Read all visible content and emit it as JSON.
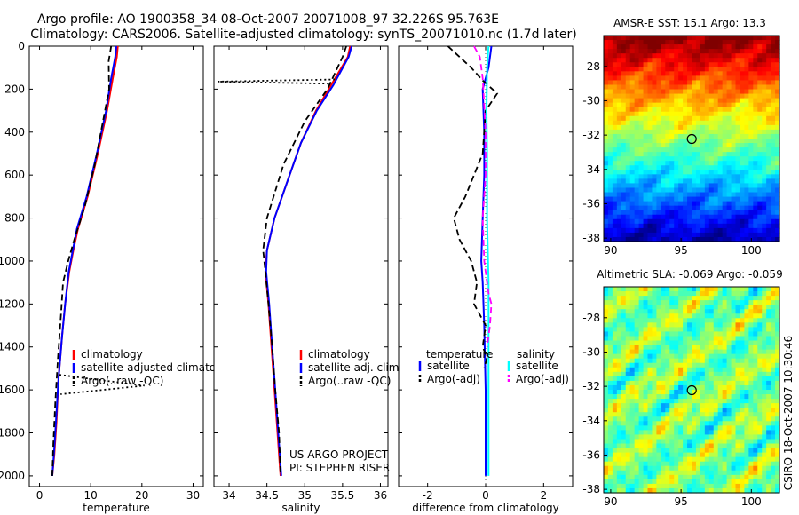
{
  "title": {
    "line1": "Argo profile: AO 1900358_34 08-Oct-2007 20071008_97 32.226S 95.763E",
    "line2": "Climatology: CARS2006. Satellite-adjusted climatology: synTS_20071010.nc (1.7d later)"
  },
  "side_label": "CSIRO 18-Oct-2007 10:30:46",
  "colors": {
    "climatology": "#ff0000",
    "satellite": "#0000ff",
    "argo": "#000000",
    "sal_satellite": "#00ffff",
    "sal_argo": "#ff00ff"
  },
  "chart_data": [
    {
      "type": "line",
      "name": "temperature-profile",
      "xlabel": "temperature",
      "xlim": [
        -2,
        32
      ],
      "ylim": [
        2050,
        0
      ],
      "xticks": [
        0,
        10,
        20,
        30
      ],
      "yticks": [
        0,
        200,
        400,
        600,
        800,
        1000,
        1200,
        1400,
        1600,
        1800,
        2000
      ],
      "legend": [
        "climatology",
        "satellite-adjusted climatology",
        "Argo(..raw -QC)"
      ],
      "series": [
        {
          "name": "climatology",
          "style": "solid",
          "color": "#ff0000",
          "x": [
            15.3,
            15.1,
            14.3,
            13.2,
            11.4,
            9.4,
            7.5,
            6.6,
            5.8,
            5.0,
            4.4,
            3.7,
            3.3,
            2.9,
            2.5
          ],
          "y": [
            0,
            50,
            150,
            300,
            500,
            700,
            850,
            950,
            1050,
            1200,
            1350,
            1550,
            1750,
            1900,
            2000
          ]
        },
        {
          "name": "satellite-adjusted climatology",
          "style": "solid",
          "color": "#0000ff",
          "x": [
            15.0,
            14.8,
            14.0,
            13.0,
            11.2,
            9.2,
            7.3,
            6.5,
            5.7,
            5.0,
            4.4,
            3.7,
            3.2,
            2.8,
            2.5
          ],
          "y": [
            0,
            50,
            150,
            300,
            500,
            700,
            850,
            950,
            1050,
            1200,
            1350,
            1550,
            1750,
            1900,
            2000
          ]
        },
        {
          "name": "Argo(..raw -QC)",
          "style": "dashed",
          "color": "#000000",
          "x": [
            14.0,
            13.5,
            13.6,
            12.4,
            10.8,
            8.8,
            6.8,
            5.6,
            4.6,
            4.2,
            3.6,
            3.1,
            2.7,
            2.5
          ],
          "y": [
            0,
            70,
            200,
            350,
            550,
            750,
            900,
            1000,
            1100,
            1250,
            1450,
            1650,
            1850,
            2000
          ]
        },
        {
          "name": "Argo(..raw -QC) spike",
          "style": "dotted",
          "color": "#000000",
          "x": [
            3.9,
            20.5,
            4.1
          ],
          "y": [
            1530,
            1580,
            1620
          ]
        }
      ]
    },
    {
      "type": "line",
      "name": "salinity-profile",
      "xlabel": "salinity",
      "xlim": [
        33.8,
        36.1
      ],
      "ylim": [
        2050,
        0
      ],
      "xticks": [
        34,
        34.5,
        35,
        35.5,
        36
      ],
      "legend": [
        "climatology",
        "satellite adj. clim.",
        "Argo(..raw -QC)"
      ],
      "annotations": [
        "US ARGO PROJECT",
        "PI: STEPHEN RISER"
      ],
      "series": [
        {
          "name": "climatology",
          "style": "solid",
          "color": "#ff0000",
          "x": [
            35.6,
            35.57,
            35.35,
            35.15,
            34.95,
            34.8,
            34.6,
            34.5,
            34.48,
            34.52,
            34.56,
            34.6,
            34.64,
            34.67,
            34.68
          ],
          "y": [
            0,
            50,
            180,
            300,
            450,
            600,
            800,
            950,
            1050,
            1200,
            1400,
            1600,
            1800,
            1950,
            2000
          ]
        },
        {
          "name": "satellite adj. clim.",
          "style": "solid",
          "color": "#0000ff",
          "x": [
            35.62,
            35.58,
            35.38,
            35.16,
            34.95,
            34.8,
            34.6,
            34.5,
            34.49,
            34.53,
            34.57,
            34.61,
            34.65,
            34.68,
            34.69
          ],
          "y": [
            0,
            50,
            180,
            300,
            450,
            600,
            800,
            950,
            1050,
            1200,
            1400,
            1600,
            1800,
            1950,
            2000
          ]
        },
        {
          "name": "Argo(..raw -QC)",
          "style": "dashed",
          "color": "#000000",
          "x": [
            35.55,
            35.5,
            35.3,
            35.0,
            34.72,
            34.5,
            34.45,
            34.48,
            34.52,
            34.57,
            34.61,
            34.66,
            34.68
          ],
          "y": [
            0,
            50,
            200,
            350,
            550,
            800,
            950,
            1050,
            1200,
            1400,
            1600,
            1800,
            2000
          ]
        },
        {
          "name": "Argo(..raw -QC) spike",
          "style": "dotted",
          "color": "#000000",
          "x": [
            35.4,
            33.85,
            35.35
          ],
          "y": [
            155,
            165,
            175
          ]
        }
      ]
    },
    {
      "type": "line",
      "name": "difference-from-climatology",
      "xlabel": "difference from climatology",
      "xlim": [
        -3,
        3
      ],
      "ylim": [
        2050,
        0
      ],
      "xticks": [
        -2,
        0,
        2
      ],
      "legend": {
        "temperature_header": "temperature",
        "salinity_header": "salinity",
        "temperature": [
          "satellite",
          "Argo(-adj)"
        ],
        "salinity": [
          "satellite",
          "Argo(-adj)"
        ]
      },
      "series": [
        {
          "name": "temperature satellite",
          "style": "solid",
          "color": "#0000ff",
          "x": [
            0.2,
            0.1,
            -0.1,
            -0.05,
            -0.05,
            -0.1,
            -0.15,
            -0.1,
            -0.05,
            0,
            0,
            0
          ],
          "y": [
            0,
            100,
            200,
            400,
            600,
            800,
            1000,
            1100,
            1300,
            1600,
            1800,
            2000
          ]
        },
        {
          "name": "temperature Argo(-adj)",
          "style": "dashed",
          "color": "#000000",
          "x": [
            -1.3,
            -0.5,
            -0.1,
            0.4,
            0.0,
            -0.1,
            -0.7,
            -1.1,
            -0.9,
            -0.5,
            -0.3,
            -0.4,
            0.0,
            -0.1,
            0.05,
            -0.05
          ],
          "y": [
            0,
            100,
            160,
            220,
            300,
            500,
            700,
            800,
            900,
            1000,
            1100,
            1200,
            1300,
            1400,
            1450,
            1500
          ]
        },
        {
          "name": "salinity satellite",
          "style": "solid",
          "color": "#00ffff",
          "x": [
            0.1,
            0.05,
            0.03,
            0.05,
            0.05,
            0.1,
            0.1,
            0.1,
            0.1
          ],
          "y": [
            0,
            100,
            300,
            500,
            800,
            1100,
            1400,
            1700,
            2000
          ]
        },
        {
          "name": "salinity Argo(-adj)",
          "style": "dashed",
          "color": "#ff00ff",
          "x": [
            -0.4,
            -0.2,
            -0.1,
            0.0,
            0.0,
            -0.1,
            -0.05,
            0.05,
            0.1,
            0.2,
            0.15,
            0.05
          ],
          "y": [
            0,
            50,
            150,
            400,
            600,
            800,
            1000,
            1100,
            1150,
            1200,
            1300,
            1400
          ]
        }
      ]
    },
    {
      "type": "heatmap",
      "name": "amsr-e-sst-map",
      "title": "AMSR-E SST: 15.1 Argo: 13.3",
      "xlim": [
        89.5,
        102
      ],
      "ylim": [
        -38.2,
        -26.2
      ],
      "xticks": [
        90,
        95,
        100
      ],
      "yticks": [
        -28,
        -30,
        -32,
        -34,
        -36,
        -38
      ],
      "marker": {
        "lon": 95.763,
        "lat": -32.226
      }
    },
    {
      "type": "heatmap",
      "name": "altimetric-sla-map",
      "title": "Altimetric SLA: -0.069 Argo: -0.059",
      "xlim": [
        89.5,
        102
      ],
      "ylim": [
        -38.2,
        -26.2
      ],
      "xticks": [
        90,
        95,
        100
      ],
      "yticks": [
        -28,
        -30,
        -32,
        -34,
        -36,
        -38
      ],
      "marker": {
        "lon": 95.763,
        "lat": -32.226
      }
    }
  ]
}
